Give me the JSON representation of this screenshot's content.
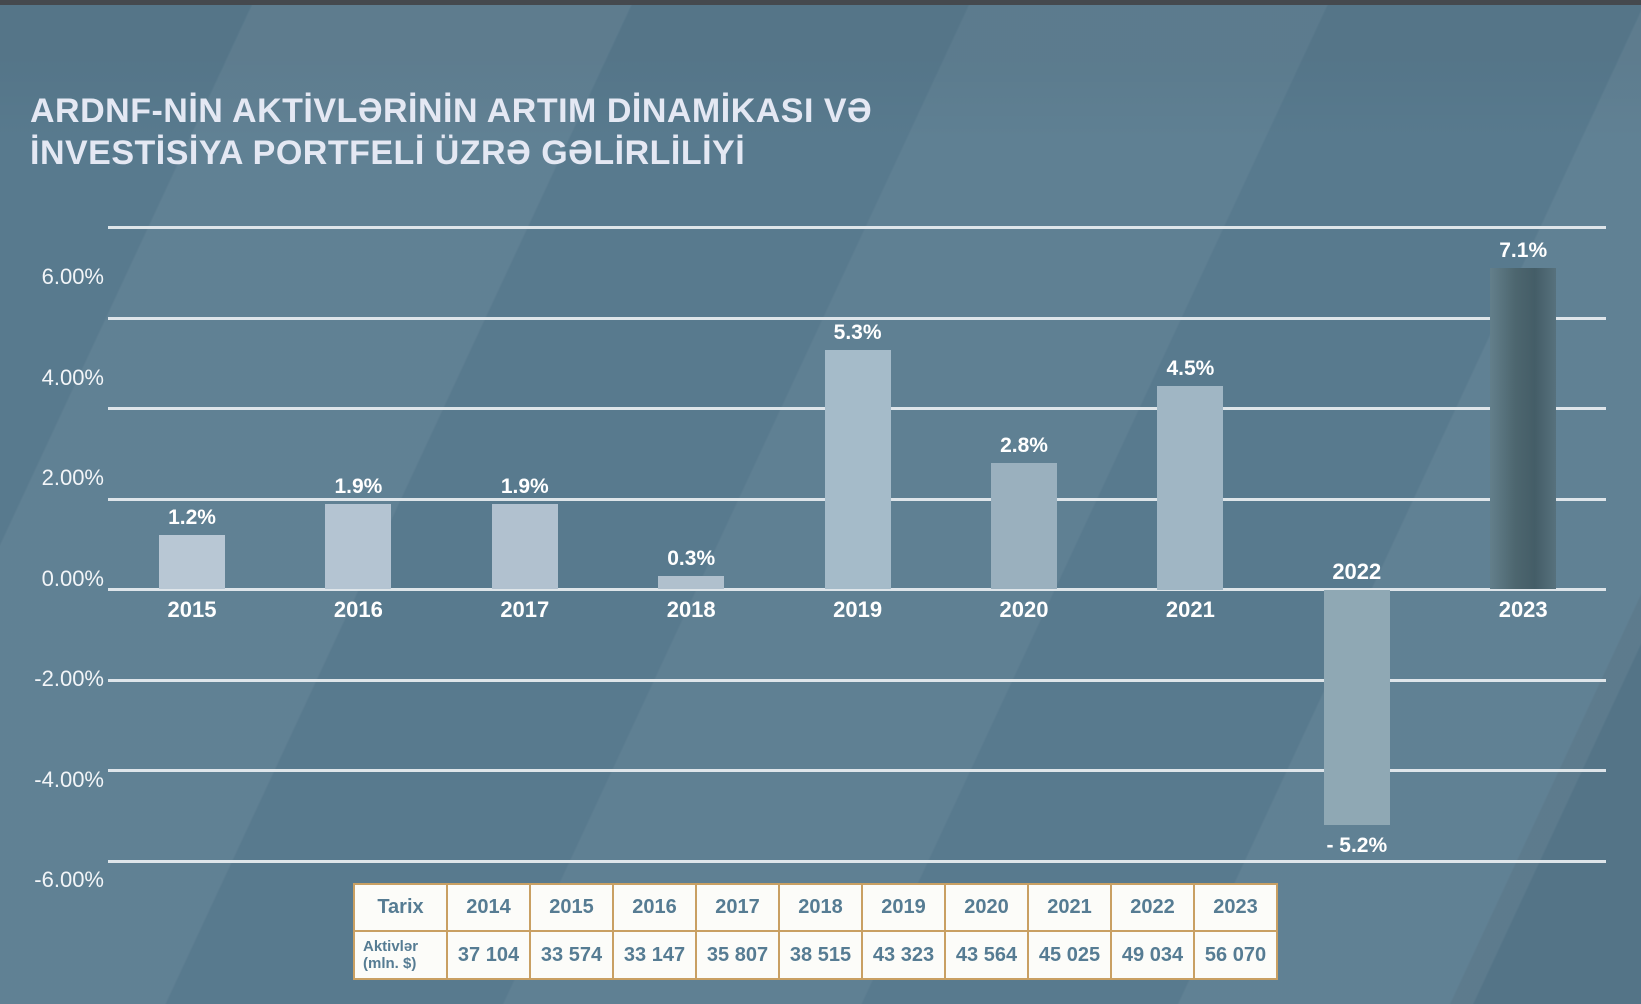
{
  "title": {
    "line1": "ARDNF-NİN AKTİVLƏRİNİN ARTIM DİNAMİKASI VƏ",
    "line2": "İNVESTİSİYA PORTFELİ ÜZRƏ GƏLİRLİLİYİ"
  },
  "chart_data": {
    "type": "bar",
    "title": "ARDNF-nin aktivlərinin artım dinamikası və investisiya portfeli üzrə gəlirliliyi",
    "categories": [
      "2015",
      "2016",
      "2017",
      "2018",
      "2019",
      "2020",
      "2021",
      "2022",
      "2023"
    ],
    "values": [
      1.2,
      1.9,
      1.9,
      0.3,
      5.3,
      2.8,
      4.5,
      -5.2,
      7.1
    ],
    "value_labels": [
      "1.2%",
      "1.9%",
      "1.9%",
      "0.3%",
      "5.3%",
      "2.8%",
      "4.5%",
      "- 5.2%",
      "7.1%"
    ],
    "bar_colors": [
      "#b8c7d4",
      "#b4c4d2",
      "#b1c1cf",
      "#b0c0cd",
      "#a5bbc9",
      "#9ab0be",
      "#a0b6c4",
      "#8fa8b4",
      {
        "gradient": [
          "#637f8b",
          "#4d666f",
          "#445d67",
          "#57717d"
        ]
      }
    ],
    "xlabel": "",
    "ylabel": "",
    "ylim": [
      -6,
      8
    ],
    "grid": true,
    "legend": false,
    "gridline_values": [
      8,
      6,
      4,
      2,
      0,
      -2,
      -4,
      -6
    ],
    "y_tick_values": [
      6,
      4,
      2,
      0,
      -2,
      -4,
      -6
    ],
    "y_tick_labels": [
      "6.00%",
      "4.00%",
      "2.00%",
      "0.00%",
      "-2.00%",
      "-4.00%",
      "-6.00%"
    ]
  },
  "table": {
    "corner_label": "Tarix",
    "row_header_line1": "Aktivlər",
    "row_header_line2": "(mln. $)",
    "years": [
      "2014",
      "2015",
      "2016",
      "2017",
      "2018",
      "2019",
      "2020",
      "2021",
      "2022",
      "2023"
    ],
    "values": [
      "37 104",
      "33 574",
      "33 147",
      "35 807",
      "38 515",
      "43 323",
      "43 564",
      "45 025",
      "49 034",
      "56 070"
    ]
  },
  "colors": {
    "background": "#587a8e",
    "top_strip": "#45494e",
    "title": "#e4e8f3",
    "gridline": "rgba(233,238,241,0.92)",
    "axis_label": "#f2f5f8",
    "bar_label": "#ffffff",
    "table_border": "#c9a063",
    "table_background": "#fcfcf9",
    "table_text": "#567c93"
  }
}
